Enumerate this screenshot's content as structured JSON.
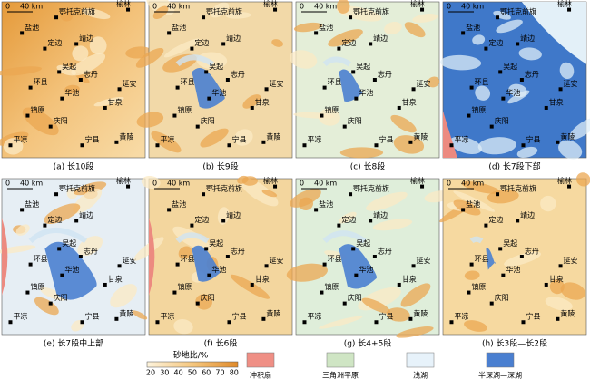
{
  "panels": [
    {
      "caption": "(a) 长10段"
    },
    {
      "caption": "(b) 长9段"
    },
    {
      "caption": "(c) 长8段"
    },
    {
      "caption": "(d) 长7段下部"
    },
    {
      "caption": "(e) 长7段中上部"
    },
    {
      "caption": "(f) 长6段"
    },
    {
      "caption": "(g) 长4+5段"
    },
    {
      "caption": "(h) 长3段—长2段"
    }
  ],
  "scale": {
    "zero": "0",
    "distance": "40 km"
  },
  "places": [
    "鄂托克前旗",
    "榆林",
    "盐池",
    "定边",
    "靖边",
    "吴起",
    "志丹",
    "延安",
    "环县",
    "华池",
    "镇原",
    "庆阳",
    "平凉",
    "甘泉",
    "宁县",
    "黄陵"
  ],
  "legend": {
    "title": "砂地比/%",
    "ticks": [
      "20",
      "30",
      "40",
      "50",
      "60",
      "70",
      "80"
    ],
    "facies": [
      "冲积扇",
      "三角洲平原",
      "浅湖",
      "半深湖—深湖"
    ]
  }
}
